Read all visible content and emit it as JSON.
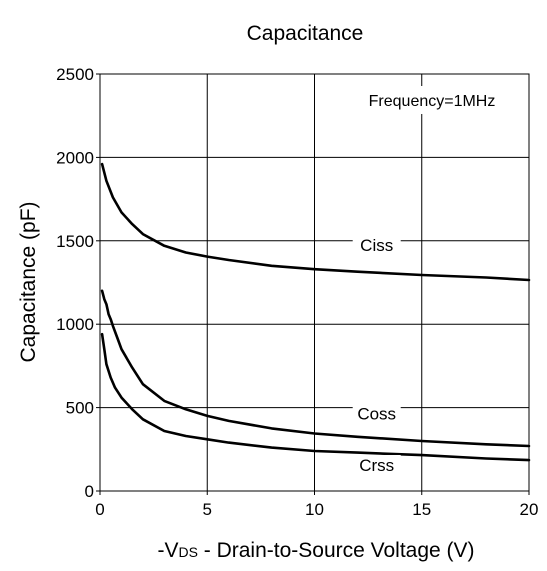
{
  "chart_data": {
    "type": "line",
    "title": "Capacitance",
    "xlabel": {
      "prefix": "-V",
      "subscript": "DS",
      "suffix": " - Drain-to-Source Voltage (V)"
    },
    "ylabel": "Capacitance (pF)",
    "xlim": [
      0,
      20
    ],
    "ylim": [
      0,
      2500
    ],
    "xticks": [
      0,
      5,
      10,
      15,
      20
    ],
    "yticks": [
      0,
      500,
      1000,
      1500,
      2000,
      2500
    ],
    "grid": true,
    "annotation": "Frequency=1MHz",
    "series": [
      {
        "name": "Ciss",
        "x": [
          0.1,
          0.3,
          0.6,
          1,
          1.5,
          2,
          3,
          4,
          5,
          6,
          8,
          10,
          12,
          15,
          18,
          20
        ],
        "y": [
          1960,
          1860,
          1760,
          1670,
          1600,
          1540,
          1470,
          1430,
          1405,
          1385,
          1350,
          1330,
          1315,
          1295,
          1280,
          1265
        ]
      },
      {
        "name": "Coss",
        "x": [
          0.1,
          0.2,
          0.3,
          0.4,
          0.5,
          0.6,
          0.8,
          1,
          1.5,
          2,
          3,
          4,
          5,
          6,
          8,
          10,
          12,
          15,
          18,
          20
        ],
        "y": [
          1200,
          1150,
          1120,
          1060,
          1030,
          990,
          920,
          850,
          740,
          640,
          540,
          490,
          450,
          420,
          375,
          345,
          325,
          300,
          280,
          270
        ]
      },
      {
        "name": "Crss",
        "x": [
          0.1,
          0.2,
          0.3,
          0.5,
          0.7,
          1,
          1.5,
          2,
          3,
          4,
          5,
          6,
          8,
          10,
          12,
          15,
          18,
          20
        ],
        "y": [
          940,
          850,
          760,
          680,
          620,
          560,
          490,
          430,
          360,
          330,
          310,
          290,
          260,
          240,
          230,
          215,
          195,
          185
        ]
      }
    ]
  }
}
